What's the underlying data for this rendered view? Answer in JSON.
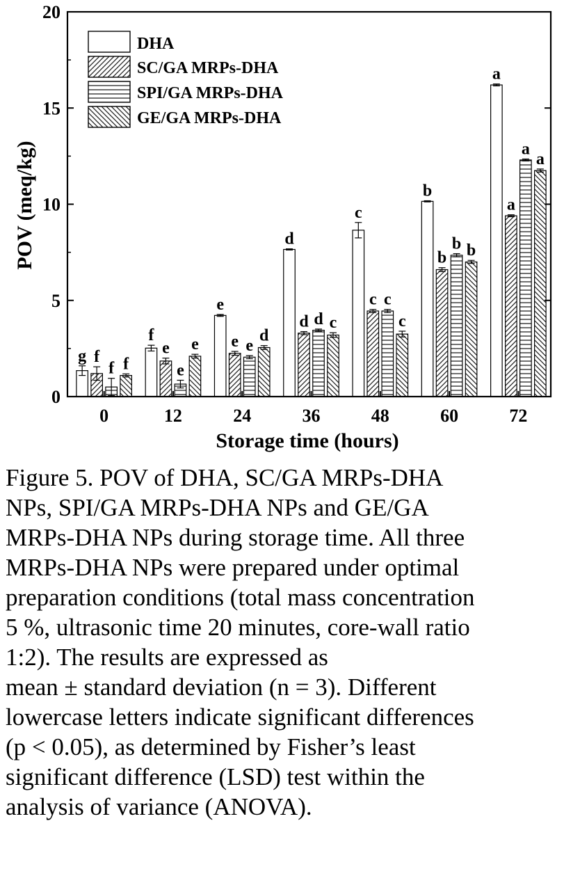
{
  "chart_data": {
    "type": "bar",
    "xlabel": "Storage time (hours)",
    "ylabel": "POV (meq/kg)",
    "ylim": [
      0,
      20
    ],
    "yticks": [
      0,
      5,
      10,
      15,
      20
    ],
    "categories": [
      "0",
      "12",
      "24",
      "36",
      "48",
      "60",
      "72"
    ],
    "legend_position": "top-left",
    "series": [
      {
        "name": "DHA",
        "pattern": "none",
        "values": [
          1.35,
          2.52,
          4.22,
          7.65,
          8.65,
          10.15,
          16.2
        ],
        "errors": [
          0.25,
          0.15,
          0.05,
          0.03,
          0.4,
          0.03,
          0.05
        ],
        "letters": [
          "g",
          "f",
          "e",
          "d",
          "c",
          "b",
          "a"
        ]
      },
      {
        "name": "SC/GA MRPs-DHA",
        "pattern": "diagonal-up",
        "values": [
          1.2,
          1.85,
          2.25,
          3.3,
          4.45,
          6.6,
          9.4
        ],
        "errors": [
          0.35,
          0.15,
          0.1,
          0.08,
          0.08,
          0.1,
          0.05
        ],
        "letters": [
          "f",
          "e",
          "e",
          "d",
          "c",
          "b",
          "a"
        ]
      },
      {
        "name": "SPI/GA MRPs-DHA",
        "pattern": "horizontal",
        "values": [
          0.5,
          0.65,
          2.05,
          3.45,
          4.45,
          7.35,
          12.3
        ],
        "errors": [
          0.45,
          0.2,
          0.08,
          0.06,
          0.08,
          0.08,
          0.05
        ],
        "letters": [
          "f",
          "e",
          "e",
          "d",
          "c",
          "b",
          "a"
        ]
      },
      {
        "name": "GE/GA MRPs-DHA",
        "pattern": "diagonal-down",
        "values": [
          1.1,
          2.1,
          2.55,
          3.2,
          3.25,
          7.0,
          11.75
        ],
        "errors": [
          0.08,
          0.1,
          0.1,
          0.12,
          0.15,
          0.08,
          0.08
        ],
        "letters": [
          "f",
          "e",
          "d",
          "c",
          "c",
          "b",
          "a"
        ]
      }
    ]
  },
  "caption": {
    "lines": [
      "Figure 5. POV of DHA, SC/GA MRPs-DHA",
      "NPs, SPI/GA MRPs-DHA NPs and GE/GA",
      "MRPs-DHA NPs during storage time. All three",
      "MRPs-DHA NPs were prepared under optimal",
      "preparation conditions (total mass concentration",
      "5 %, ultrasonic time 20 minutes, core-wall ratio",
      "1:2). The results are expressed as",
      "mean ± standard deviation (n = 3). Different",
      "lowercase letters indicate significant differences",
      "(p < 0.05), as determined by Fisher’s least",
      "significant difference (LSD) test within the",
      "analysis of variance (ANOVA)."
    ]
  }
}
